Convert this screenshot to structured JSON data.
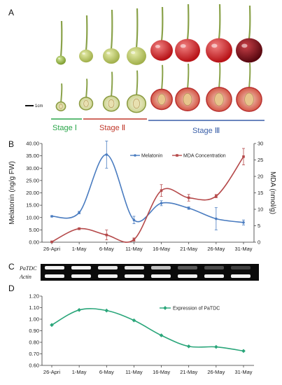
{
  "figure": {
    "panels": {
      "a": "A",
      "b": "B",
      "c": "C",
      "d": "D"
    },
    "scale_label": "1cm",
    "stages": [
      {
        "label": "Stage Ⅰ",
        "color": "#2aa64a"
      },
      {
        "label": "Stage Ⅱ",
        "color": "#c0392b"
      },
      {
        "label": "Stage Ⅲ",
        "color": "#3a5fa8"
      }
    ],
    "gel": {
      "rows": [
        {
          "label": "PaTDC"
        },
        {
          "label": "Actin"
        }
      ]
    },
    "colors": {
      "melatonin": "#4a7cc0",
      "mda": "#b5494a",
      "patdc": "#2aa67a"
    }
  },
  "chart_data": [
    {
      "type": "line",
      "categories": [
        "26-Apri",
        "1-May",
        "6-May",
        "11-May",
        "16-May",
        "21-May",
        "26-May",
        "31-May"
      ],
      "ylabel": "Melatonin (ng/g FW)",
      "y2label": "MDA (nmol/g)",
      "ylim": [
        0,
        40
      ],
      "y2lim": [
        0,
        30
      ],
      "yticks": [
        "0.00",
        "5.00",
        "10.00",
        "15.00",
        "20.00",
        "25.00",
        "30.00",
        "35.00",
        "40.00"
      ],
      "y2ticks": [
        "0",
        "5",
        "10",
        "15",
        "20",
        "25",
        "30"
      ],
      "legend_position": "top-right",
      "series": [
        {
          "name": "Melatonin",
          "axis": "left",
          "values": [
            10.5,
            12.0,
            35.5,
            9.0,
            15.8,
            13.8,
            9.5,
            8.0
          ],
          "errors": [
            0.3,
            0.5,
            5.5,
            1.5,
            1.0,
            0.5,
            4.5,
            1.0
          ]
        },
        {
          "name": "MDA Concentration",
          "axis": "right",
          "values": [
            0.1,
            4.1,
            2.2,
            0.8,
            15.7,
            13.5,
            14.0,
            26.0
          ],
          "errors": [
            0.2,
            0.3,
            1.5,
            0.5,
            1.8,
            1.0,
            0.5,
            2.5
          ]
        }
      ]
    },
    {
      "type": "line",
      "categories": [
        "26-Apri",
        "1-May",
        "6-May",
        "11-May",
        "16-May",
        "21-May",
        "26-May",
        "31-May"
      ],
      "ylim": [
        0.6,
        1.2
      ],
      "yticks": [
        "0.60",
        "0.70",
        "0.80",
        "0.90",
        "1.00",
        "1.10",
        "1.20"
      ],
      "legend_position": "top-right",
      "series": [
        {
          "name": "Expression of PaTDC",
          "values": [
            0.95,
            1.08,
            1.075,
            0.99,
            0.86,
            0.765,
            0.76,
            0.725
          ]
        }
      ]
    }
  ]
}
